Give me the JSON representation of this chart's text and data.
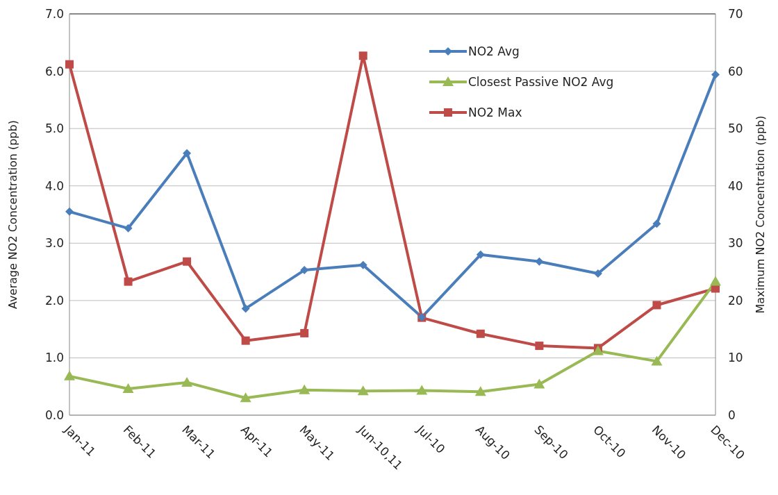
{
  "chart_data": {
    "type": "line",
    "xlabel": null,
    "ylabel": "Average NO2 Concentration (ppb)",
    "y2label": "Maximum NO2 Concentration (ppb)",
    "categories": [
      "Jan-11",
      "Feb-11",
      "Mar-11",
      "Apr-11",
      "May-11",
      "Jun-10,11",
      "Jul-10",
      "Aug-10",
      "Sep-10",
      "Oct-10",
      "Nov-10",
      "Dec-10"
    ],
    "series": [
      {
        "name": "NO2 Avg",
        "color": "#4a7ebb",
        "marker": "diamond",
        "values": [
          3.55,
          3.26,
          4.57,
          1.86,
          2.53,
          2.62,
          1.71,
          2.8,
          2.68,
          2.47,
          3.34,
          5.94
        ]
      },
      {
        "name": "Closest Passive NO2 Avg",
        "color": "#98b954",
        "marker": "triangle",
        "values": [
          0.68,
          0.46,
          0.57,
          0.3,
          0.44,
          0.42,
          0.43,
          0.41,
          0.54,
          1.12,
          0.94,
          2.33
        ]
      },
      {
        "name": "NO2 Max",
        "color": "#be4b48",
        "marker": "square",
        "axis": "y2",
        "values": [
          61.2,
          23.3,
          26.8,
          13.0,
          14.3,
          62.7,
          17.0,
          14.2,
          12.1,
          11.7,
          19.2,
          22.1
        ]
      }
    ],
    "ylim": [
      0,
      7
    ],
    "yticks": [
      {
        "value": 0,
        "label": "0.0"
      },
      {
        "value": 1,
        "label": "1.0"
      },
      {
        "value": 2,
        "label": "2.0"
      },
      {
        "value": 3,
        "label": "3.0"
      },
      {
        "value": 4,
        "label": "4.0"
      },
      {
        "value": 5,
        "label": "5.0"
      },
      {
        "value": 6,
        "label": "6.0"
      },
      {
        "value": 7,
        "label": "7.0"
      }
    ],
    "y2lim": [
      0,
      70
    ],
    "y2ticks": [
      0,
      10,
      20,
      30,
      40,
      50,
      60,
      70
    ],
    "grid": "y",
    "legend": "top right",
    "line_style": "solid"
  }
}
